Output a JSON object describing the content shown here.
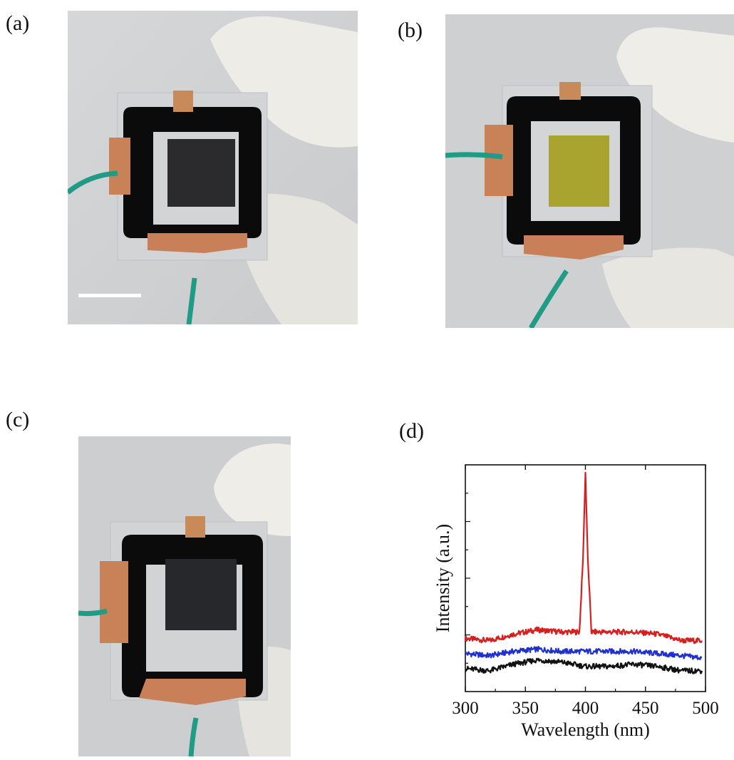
{
  "figure": {
    "panels": [
      {
        "label": "(a)",
        "film_color": "#2b2b2e",
        "has_scale_bar": true
      },
      {
        "label": "(b)",
        "film_color": "#a9a32f",
        "has_scale_bar": false
      },
      {
        "label": "(c)",
        "film_color": "#27282b",
        "has_scale_bar": false
      },
      {
        "label": "(d)"
      }
    ]
  },
  "chart_data": {
    "type": "line",
    "xlabel": "Wavelength (nm)",
    "ylabel": "Intensity (a.u.)",
    "xlim": [
      300,
      500
    ],
    "ylim": [
      0,
      1
    ],
    "x_ticks": [
      300,
      350,
      400,
      450,
      500
    ],
    "y_tick_labels_shown": false,
    "grid": false,
    "legend": "none",
    "series": [
      {
        "color": "#d81e1e",
        "x": [
          300,
          320,
          340,
          360,
          380,
          395,
          398,
          400,
          402,
          405,
          420,
          440,
          460,
          480,
          497
        ],
        "values": [
          0.23,
          0.22,
          0.25,
          0.27,
          0.26,
          0.26,
          0.6,
          1.0,
          0.6,
          0.26,
          0.26,
          0.26,
          0.25,
          0.22,
          0.22
        ]
      },
      {
        "color": "#1f2fd0",
        "x": [
          300,
          320,
          340,
          360,
          380,
          400,
          420,
          440,
          460,
          480,
          497
        ],
        "values": [
          0.16,
          0.15,
          0.17,
          0.18,
          0.17,
          0.17,
          0.17,
          0.17,
          0.16,
          0.15,
          0.14
        ]
      },
      {
        "color": "#111111",
        "x": [
          300,
          320,
          340,
          360,
          380,
          400,
          420,
          440,
          460,
          480,
          497
        ],
        "values": [
          0.09,
          0.08,
          0.11,
          0.13,
          0.12,
          0.1,
          0.1,
          0.11,
          0.1,
          0.08,
          0.08
        ]
      }
    ]
  }
}
